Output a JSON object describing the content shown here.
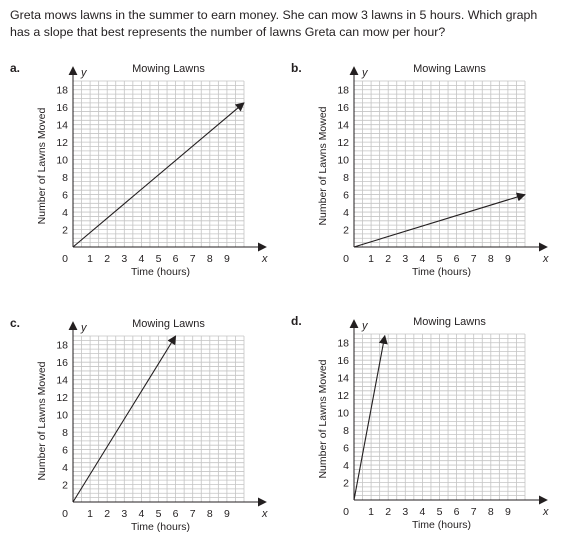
{
  "question": {
    "text": "Greta mows lawns in the summer to earn money.  She can mow 3 lawns in 5 hours. Which graph has a slope that best represents the number of lawns Greta can mow per hour?"
  },
  "graph_panels": [
    {
      "label": "a."
    },
    {
      "label": "b."
    },
    {
      "label": "c."
    },
    {
      "label": "d."
    }
  ],
  "chart_data": [
    {
      "type": "line",
      "title": "Mowing Lawns",
      "xlabel": "Time (hours)",
      "ylabel": "Number of Lawns Moved",
      "x_axis_letter": "x",
      "y_axis_letter": "y",
      "origin_label": "0",
      "xlim": [
        0,
        10
      ],
      "ylim": [
        0,
        19
      ],
      "x_ticks": [
        1,
        2,
        3,
        4,
        5,
        6,
        7,
        8,
        9
      ],
      "y_ticks": [
        2,
        4,
        6,
        8,
        10,
        12,
        14,
        16,
        18
      ],
      "grid": true,
      "series": [
        {
          "x": [
            0,
            10
          ],
          "y": [
            0,
            16.5
          ],
          "arrow": true
        }
      ]
    },
    {
      "type": "line",
      "title": "Mowing Lawns",
      "xlabel": "Time (hours)",
      "ylabel": "Number of Lawns Mowed",
      "x_axis_letter": "x",
      "y_axis_letter": "y",
      "origin_label": "0",
      "xlim": [
        0,
        10
      ],
      "ylim": [
        0,
        19
      ],
      "x_ticks": [
        1,
        2,
        3,
        4,
        5,
        6,
        7,
        8,
        9
      ],
      "y_ticks": [
        2,
        4,
        6,
        8,
        10,
        12,
        14,
        16,
        18
      ],
      "grid": true,
      "series": [
        {
          "x": [
            0,
            10
          ],
          "y": [
            0,
            6
          ],
          "arrow": true
        }
      ]
    },
    {
      "type": "line",
      "title": "Mowing Lawns",
      "xlabel": "Time (hours)",
      "ylabel": "Number of Lawns Mowed",
      "x_axis_letter": "x",
      "y_axis_letter": "y",
      "origin_label": "0",
      "xlim": [
        0,
        10
      ],
      "ylim": [
        0,
        19
      ],
      "x_ticks": [
        1,
        2,
        3,
        4,
        5,
        6,
        7,
        8,
        9
      ],
      "y_ticks": [
        2,
        4,
        6,
        8,
        10,
        12,
        14,
        16,
        18
      ],
      "grid": true,
      "series": [
        {
          "x": [
            0,
            6
          ],
          "y": [
            0,
            19
          ],
          "arrow": true
        }
      ]
    },
    {
      "type": "line",
      "title": "Mowing Lawns",
      "xlabel": "Time (hours)",
      "ylabel": "Number of Lawns Mowed",
      "x_axis_letter": "x",
      "y_axis_letter": "y",
      "origin_label": "0",
      "xlim": [
        0,
        10
      ],
      "ylim": [
        0,
        19
      ],
      "x_ticks": [
        1,
        2,
        3,
        4,
        5,
        6,
        7,
        8,
        9
      ],
      "y_ticks": [
        2,
        4,
        6,
        8,
        10,
        12,
        14,
        16,
        18
      ],
      "grid": true,
      "series": [
        {
          "x": [
            0,
            1.8
          ],
          "y": [
            0,
            18.8
          ],
          "arrow": true
        }
      ]
    }
  ]
}
